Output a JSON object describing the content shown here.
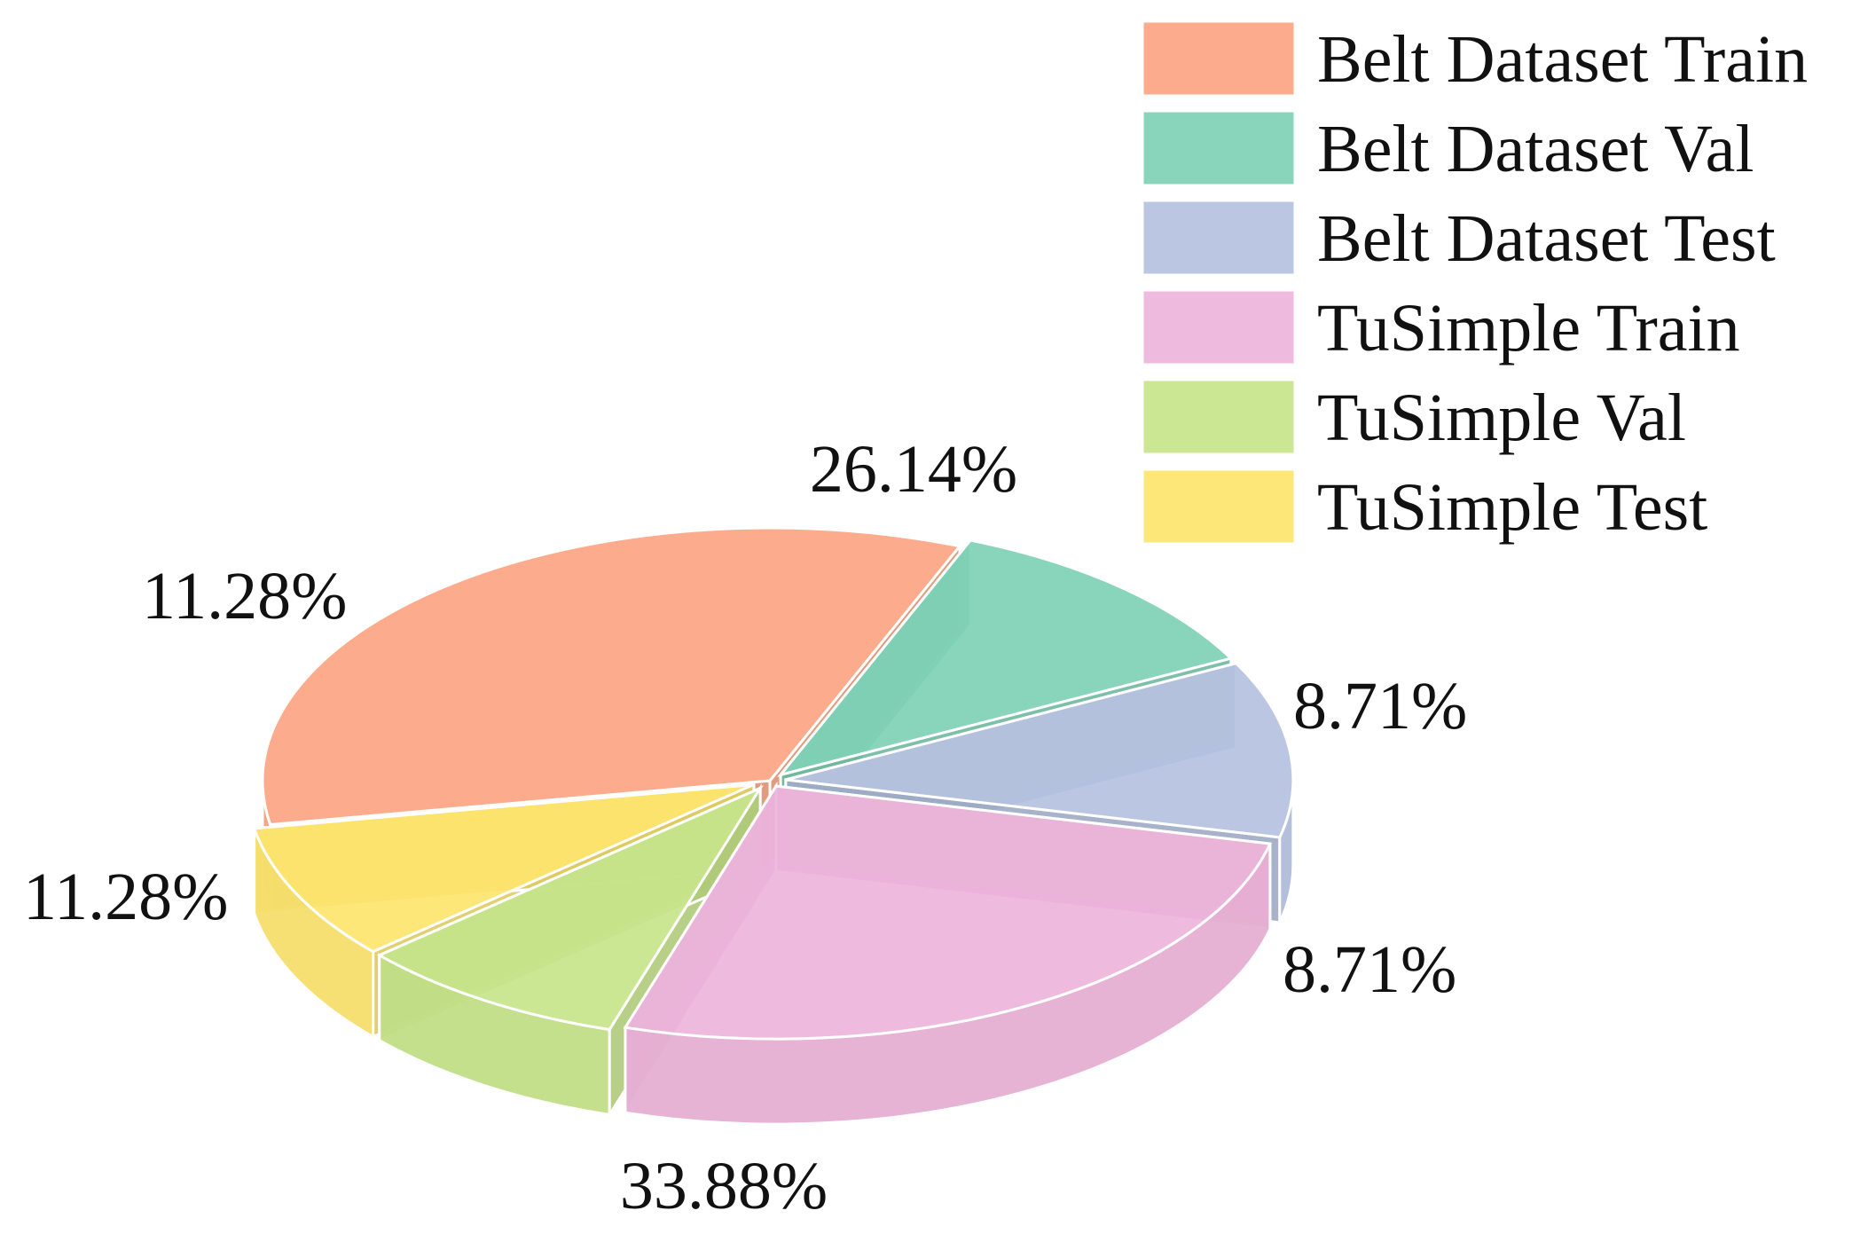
{
  "chart_data": {
    "type": "pie",
    "style": "3d-exploded-tilted",
    "title": "",
    "categories": [
      "Belt Dataset Train",
      "Belt Dataset Val",
      "Belt Dataset Test",
      "TuSimple Train",
      "TuSimple Val",
      "TuSimple Test"
    ],
    "values": [
      33.88,
      11.28,
      11.28,
      26.14,
      8.71,
      8.71
    ],
    "labels": [
      "33.88%",
      "11.28%",
      "11.28%",
      "26.14%",
      "8.71%",
      "8.71%"
    ],
    "colors": [
      "#FCA582",
      "#7FD1B6",
      "#B5C2E0",
      "#EDB4DA",
      "#C8E58B",
      "#FDE56E"
    ],
    "legend_position": "top-right"
  }
}
